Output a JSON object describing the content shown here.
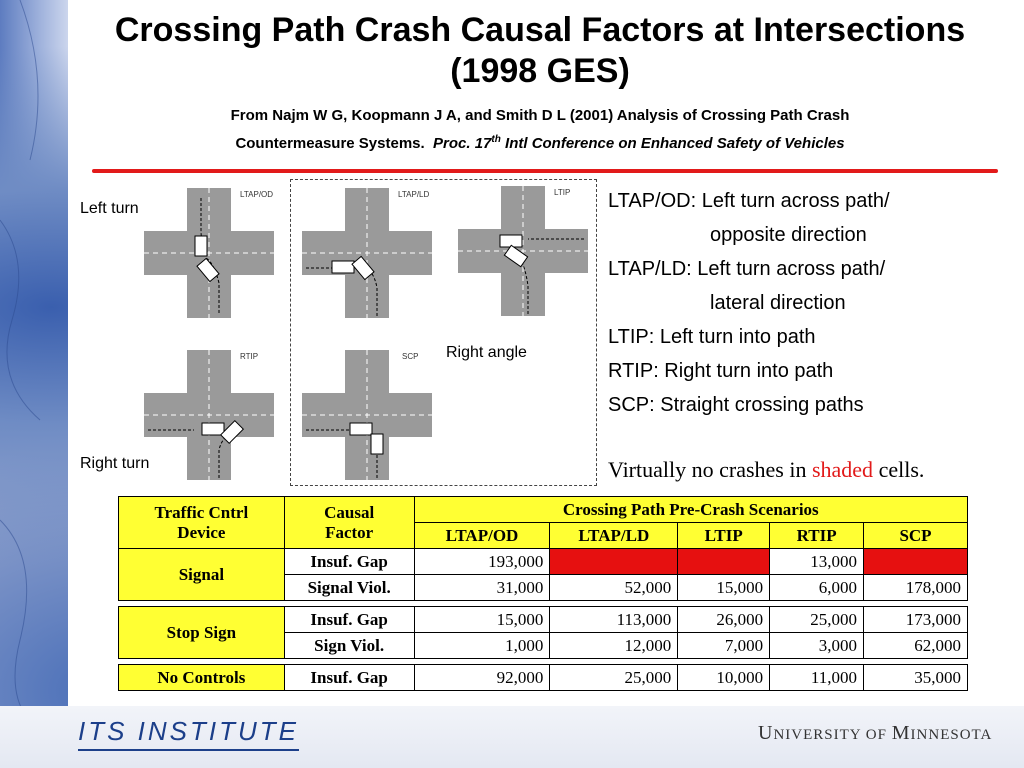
{
  "title": "Crossing Path Crash Causal Factors at Intersections (1998 GES)",
  "subtitle": {
    "line1": "From Najm W G, Koopmann J A, and Smith D L (2001) Analysis of Crossing Path Crash",
    "line2_prefix": "Countermeasure Systems.",
    "line2_italic_a": "Proc. 17",
    "line2_sup": "th",
    "line2_italic_b": "Intl Conference on Enhanced Safety of Vehicles"
  },
  "labels": {
    "left_turn": "Left turn",
    "right_angle": "Right angle",
    "right_turn": "Right turn"
  },
  "diagrams": {
    "ltap_od": "LTAP/OD",
    "ltap_ld": "LTAP/LD",
    "ltip": "LTIP",
    "rtip": "RTIP",
    "scp": "SCP"
  },
  "definitions": {
    "ltap_od_a": "LTAP/OD: Left turn across path/",
    "ltap_od_b": "opposite direction",
    "ltap_ld_a": "LTAP/LD: Left turn across path/",
    "ltap_ld_b": "lateral direction",
    "ltip": "LTIP: Left turn into path",
    "rtip": "RTIP: Right turn into path",
    "scp": "SCP: Straight crossing paths"
  },
  "note": {
    "before": "Virtually no crashes in",
    "shaded": "shaded",
    "after": "cells."
  },
  "table": {
    "header_device_1": "Traffic Cntrl",
    "header_device_2": "Device",
    "header_factor_1": "Causal",
    "header_factor_2": "Factor",
    "header_group": "Crossing Path Pre-Crash Scenarios",
    "columns": [
      "LTAP/OD",
      "LTAP/LD",
      "LTIP",
      "RTIP",
      "SCP"
    ],
    "signal": {
      "device": "Signal",
      "insuf_gap": {
        "factor": "Insuf. Gap",
        "values": [
          "193,000",
          "",
          "",
          "13,000",
          ""
        ]
      },
      "signal_viol": {
        "factor": "Signal Viol.",
        "values": [
          "31,000",
          "52,000",
          "15,000",
          "6,000",
          "178,000"
        ]
      }
    },
    "stop": {
      "device": "Stop Sign",
      "insuf_gap": {
        "factor": "Insuf. Gap",
        "values": [
          "15,000",
          "113,000",
          "26,000",
          "25,000",
          "173,000"
        ]
      },
      "sign_viol": {
        "factor": "Sign Viol.",
        "values": [
          "1,000",
          "12,000",
          "7,000",
          "3,000",
          "62,000"
        ]
      }
    },
    "none": {
      "device": "No Controls",
      "insuf_gap": {
        "factor": "Insuf. Gap",
        "values": [
          "92,000",
          "25,000",
          "10,000",
          "11,000",
          "35,000"
        ]
      }
    }
  },
  "footer": {
    "its": "ITS INSTITUTE",
    "umn_a": "U",
    "umn_b": "NIVERSITY OF ",
    "umn_c": "M",
    "umn_d": "INNESOTA"
  },
  "colors": {
    "header_yellow": "#ffff33",
    "shaded_red": "#e61010",
    "rule_red": "#e21a1a"
  }
}
